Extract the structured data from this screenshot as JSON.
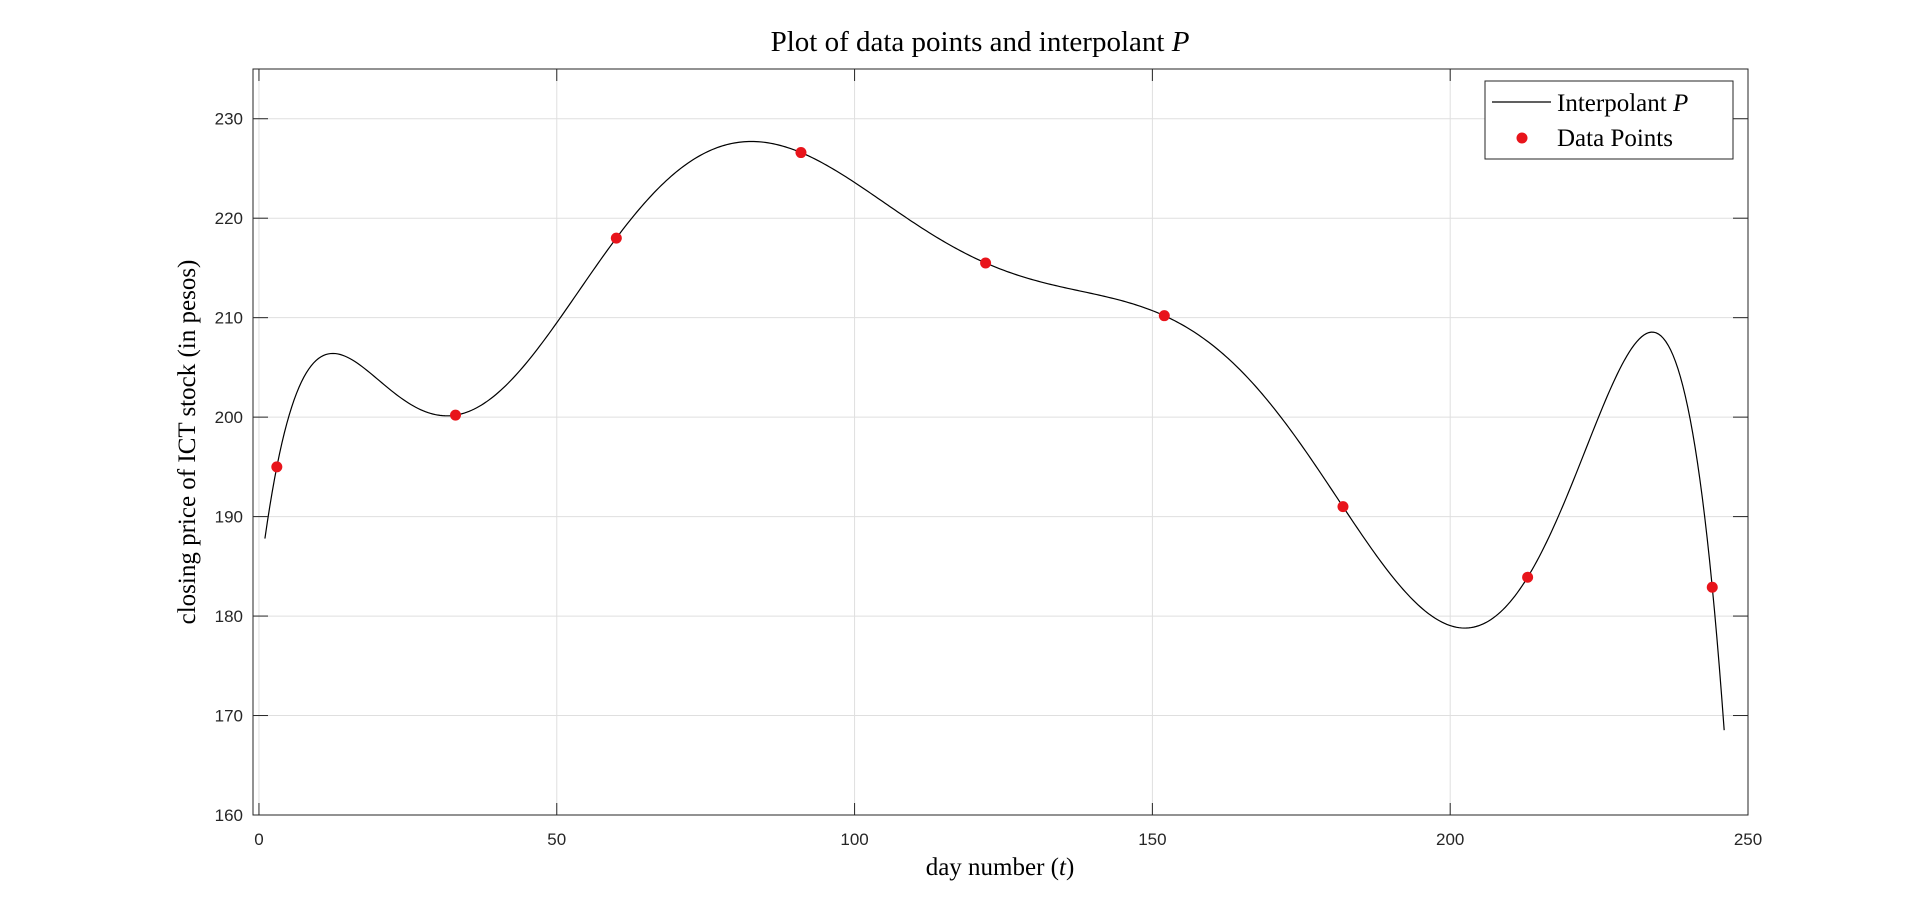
{
  "chart_data": {
    "type": "line",
    "title": "Plot of data points and interpolant P",
    "title_parts": {
      "text": "Plot of data points and interpolant",
      "symbol": "P"
    },
    "xlabel": "day number (t)",
    "xlabel_parts": {
      "text": "day number",
      "symbol": "t"
    },
    "ylabel": "closing price of ICT stock (in pesos)",
    "xlim": [
      -1,
      250
    ],
    "ylim": [
      160,
      235
    ],
    "xticks": [
      0,
      50,
      100,
      150,
      200,
      250
    ],
    "yticks": [
      160,
      170,
      180,
      190,
      200,
      210,
      220,
      230
    ],
    "grid": true,
    "legend_position": "top-right",
    "colors": {
      "curve": "#000000",
      "points": "#e8141b",
      "grid": "#dfdfdf",
      "axes": "#262626"
    },
    "series": [
      {
        "name": "Interpolant P",
        "name_parts": {
          "text": "Interpolant",
          "symbol": "P"
        },
        "kind": "line",
        "x_range": [
          1,
          246
        ]
      },
      {
        "name": "Data Points",
        "kind": "scatter",
        "x": [
          3,
          33,
          60,
          91,
          122,
          152,
          182,
          213,
          244
        ],
        "y": [
          195.0,
          200.2,
          218.0,
          226.6,
          215.5,
          210.2,
          191.0,
          183.9,
          182.9
        ]
      }
    ]
  }
}
